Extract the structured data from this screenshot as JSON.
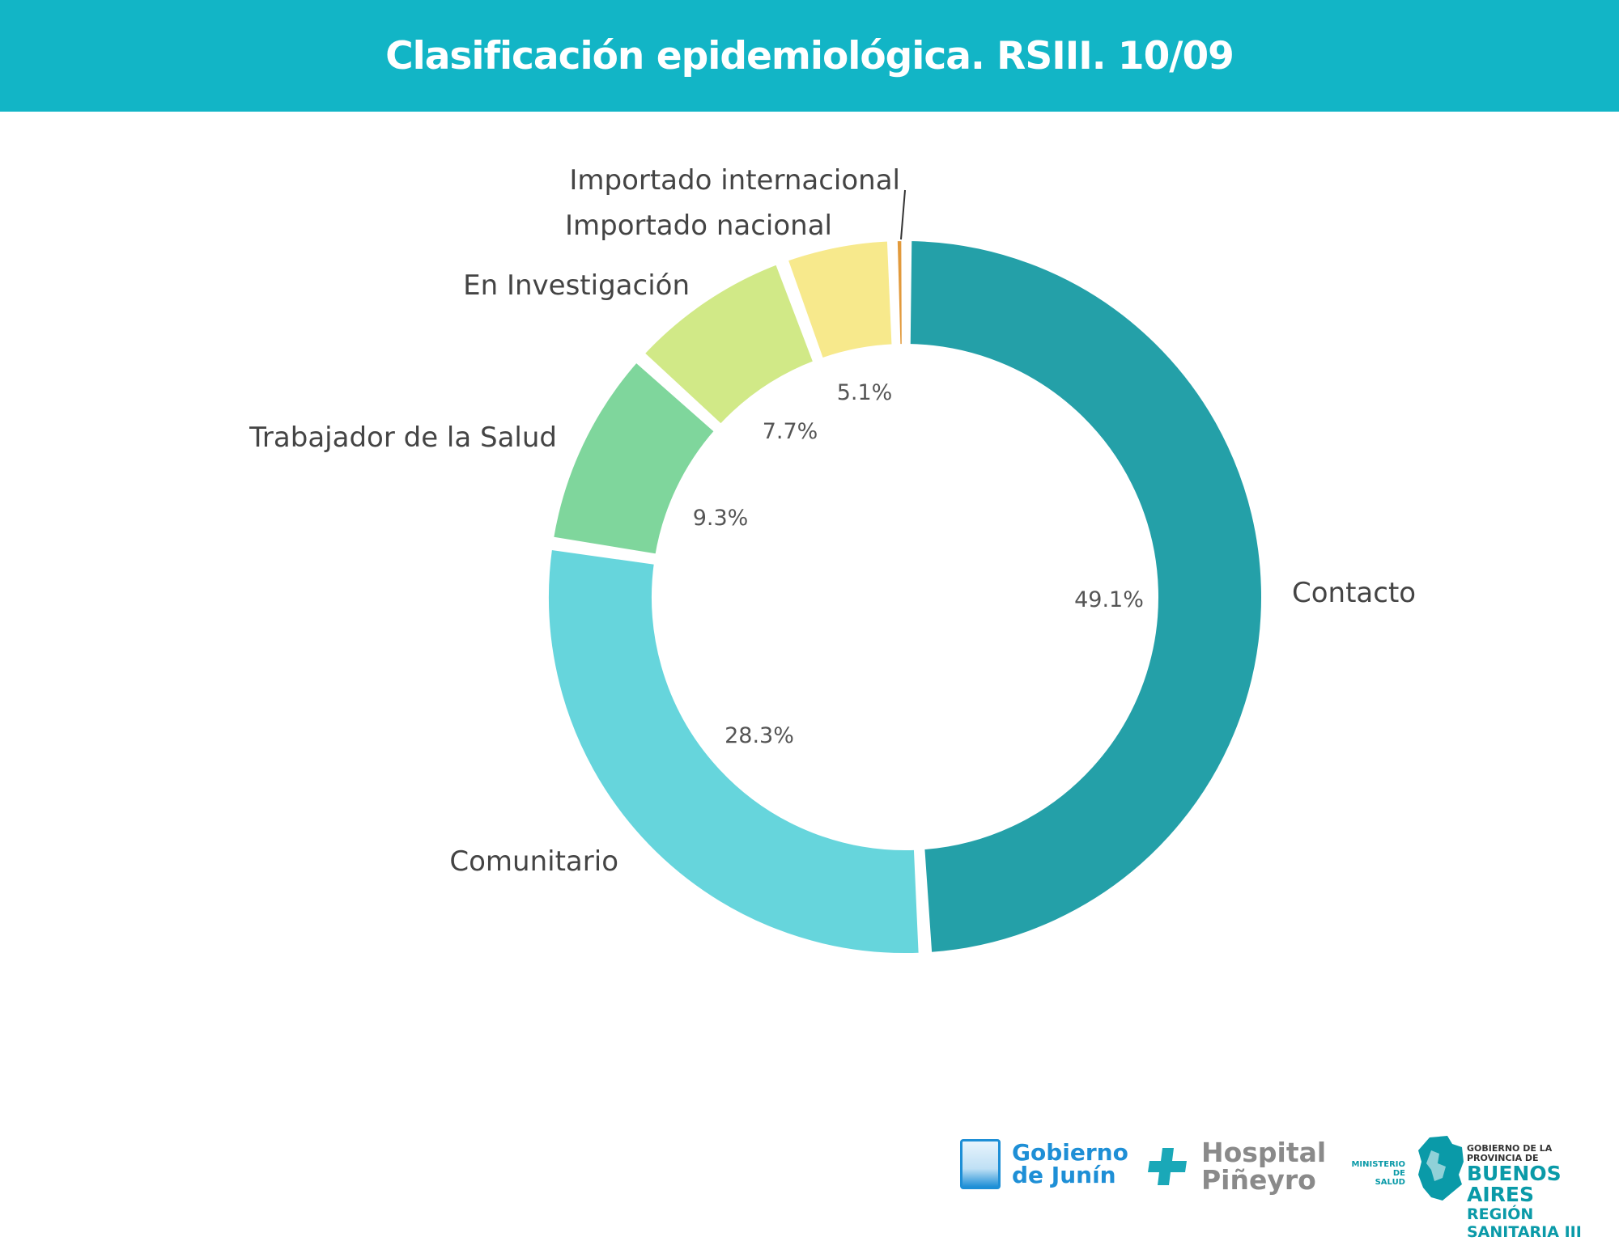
{
  "header": {
    "title": "Clasificación epidemiológica. RSIII. 10/09",
    "background": "#12b5c6"
  },
  "chart_data": {
    "type": "pie",
    "variant": "donut",
    "legend": "none",
    "slices": [
      {
        "label": "Contacto",
        "value": 49.1,
        "value_label": "49.1%",
        "color": "#24a0a8"
      },
      {
        "label": "Comunitario",
        "value": 28.3,
        "value_label": "28.3%",
        "color": "#66d5dc"
      },
      {
        "label": "Trabajador de la Salud",
        "value": 9.3,
        "value_label": "9.3%",
        "color": "#7fd69c"
      },
      {
        "label": "En Investigación",
        "value": 7.7,
        "value_label": "7.7%",
        "color": "#d1e987"
      },
      {
        "label": "Importado nacional",
        "value": 5.1,
        "value_label": "5.1%",
        "color": "#f7e98c"
      },
      {
        "label": "Importado internacional",
        "value": 0.5,
        "value_label": "",
        "color": "#e29a3c"
      }
    ]
  },
  "footer": {
    "junin": {
      "line1": "Gobierno",
      "line2": "de Junín"
    },
    "hospital": {
      "line1": "Hospital",
      "line2": "Piñeyro"
    },
    "provincia": {
      "ministerio_line1": "MINISTERIO DE",
      "ministerio_line2": "SALUD",
      "small": "GOBIERNO DE LA PROVINCIA DE",
      "big": "BUENOS AIRES",
      "region": "REGIÓN SANITARIA III"
    }
  }
}
